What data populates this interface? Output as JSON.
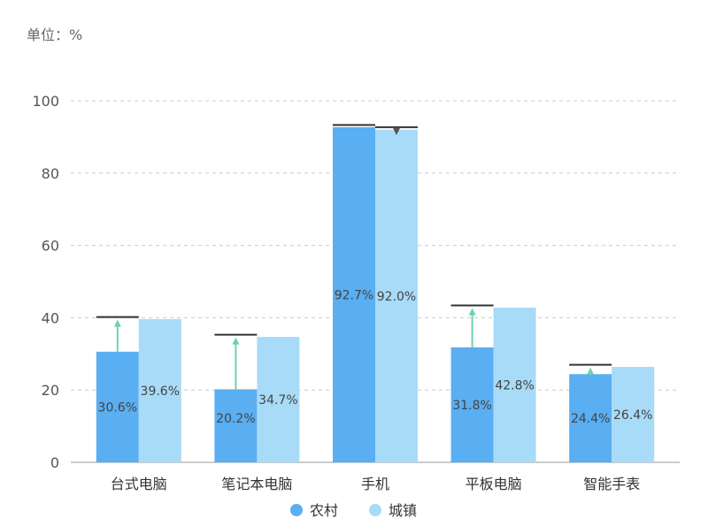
{
  "unit_label": "单位：%",
  "colors": {
    "rural": "#5aaef2",
    "urban": "#a8dbf7",
    "grid": "#cccccc",
    "axis": "#bbbbbb",
    "marker": "#333333",
    "arrow_up": "#6fd4a8",
    "arrow_down": "#555555"
  },
  "chart_data": {
    "type": "bar",
    "categories": [
      "台式电脑",
      "笔记本电脑",
      "手机",
      "平板电脑",
      "智能手表"
    ],
    "series": [
      {
        "name": "农村",
        "values": [
          30.6,
          20.2,
          92.7,
          31.8,
          24.4
        ],
        "labels": [
          "30.6%",
          "20.2%",
          "92.7%",
          "31.8%",
          "24.4%"
        ]
      },
      {
        "name": "城镇",
        "values": [
          39.6,
          34.7,
          92.0,
          42.8,
          26.4
        ],
        "labels": [
          "39.6%",
          "34.7%",
          "92.0%",
          "42.8%",
          "26.4%"
        ]
      }
    ],
    "yticks": [
      "0",
      "20",
      "40",
      "60",
      "80",
      "100"
    ],
    "ylim": [
      0,
      100
    ],
    "grid": true,
    "legend": "bottom-center"
  }
}
